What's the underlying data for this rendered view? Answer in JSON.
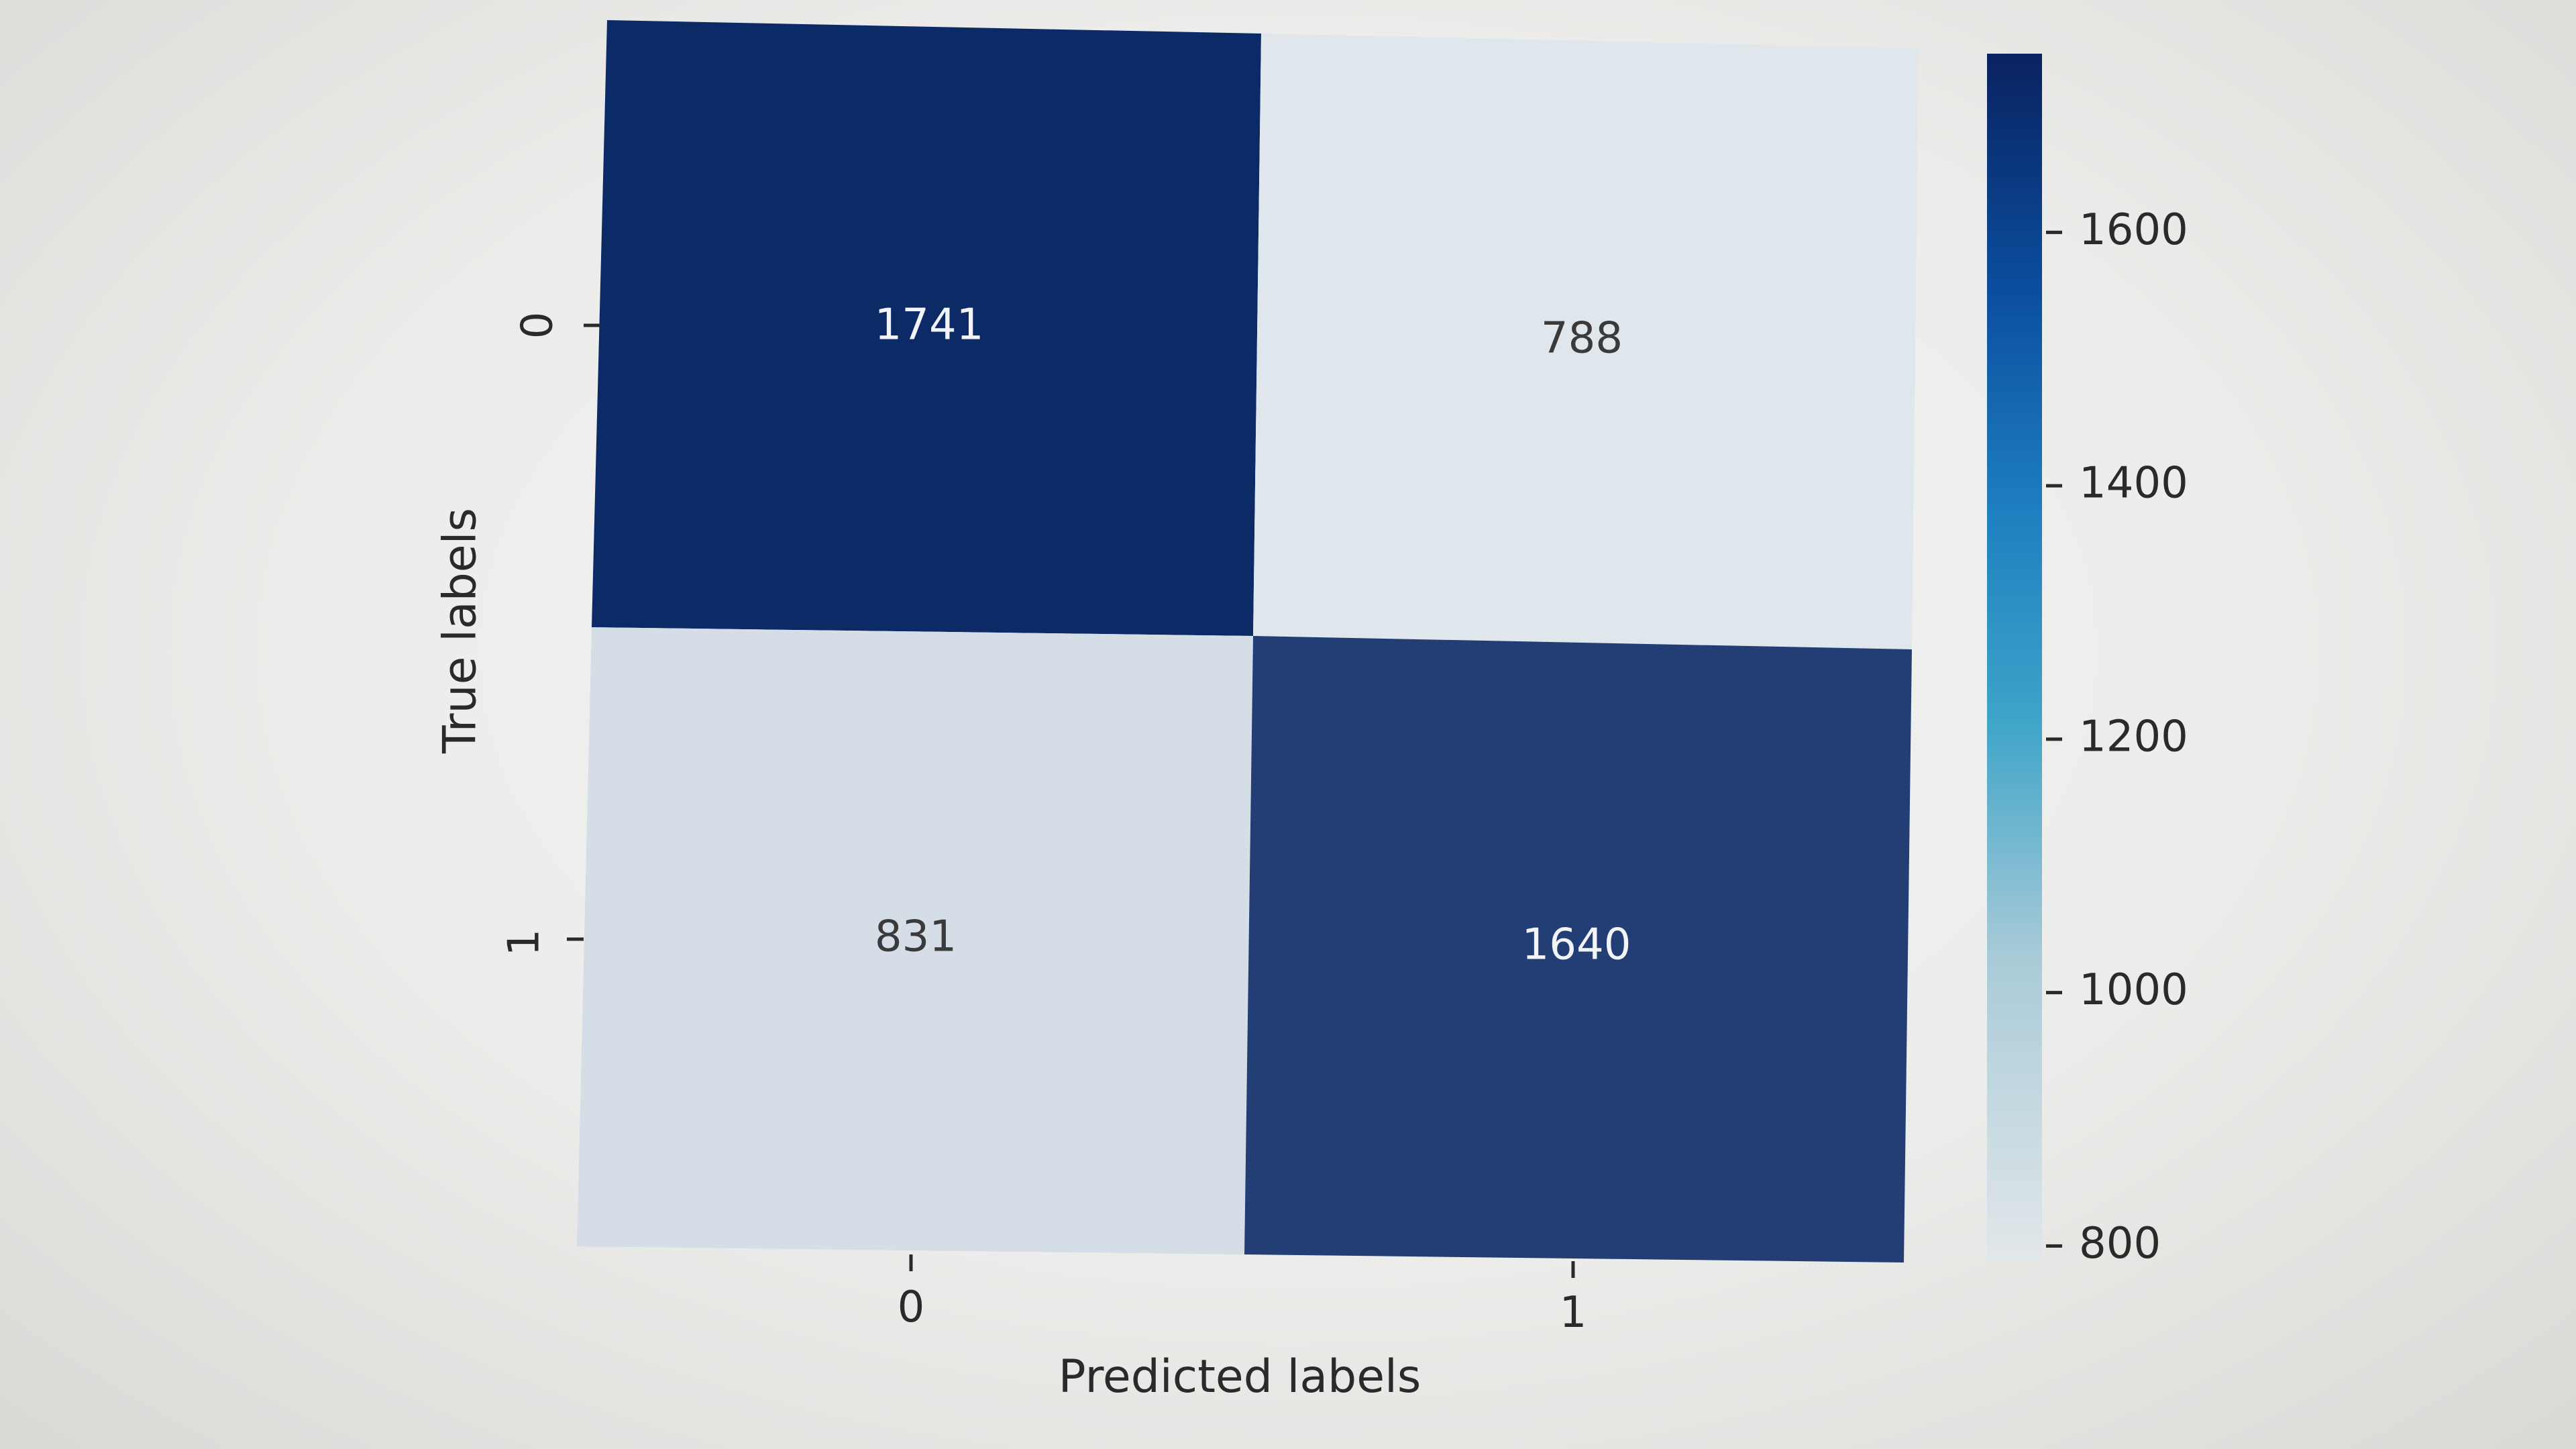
{
  "chart_data": {
    "type": "heatmap",
    "x_categories": [
      "0",
      "1"
    ],
    "y_categories": [
      "0",
      "1"
    ],
    "matrix": [
      [
        1741,
        788
      ],
      [
        831,
        1640
      ]
    ],
    "cell_labels": [
      [
        "1741",
        "788"
      ],
      [
        "831",
        "1640"
      ]
    ],
    "xlabel": "Predicted labels",
    "ylabel": "True labels",
    "colorbar": {
      "range": [
        788,
        1741
      ],
      "ticks": [
        800,
        1000,
        1200,
        1400,
        1600
      ],
      "tick_labels": [
        "800",
        "1000",
        "1200",
        "1400",
        "1600"
      ],
      "colormap": "Blues"
    },
    "colors": {
      "low": "#dfe6ec",
      "high": "#0c2a66"
    }
  }
}
